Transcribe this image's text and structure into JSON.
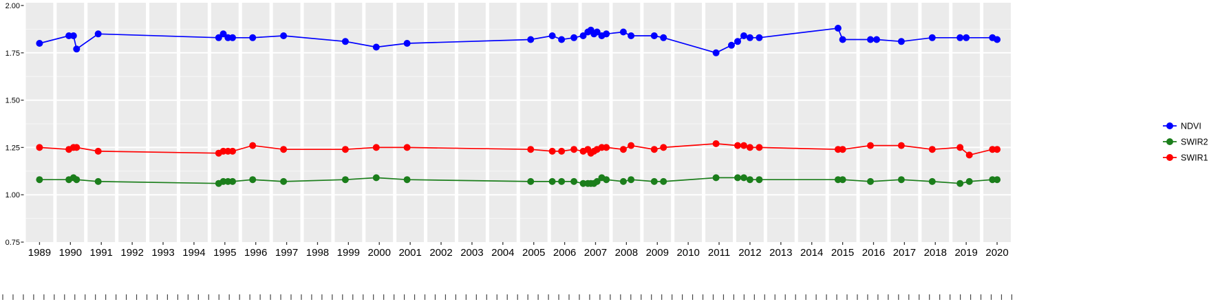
{
  "chart_data": {
    "type": "line",
    "title": "",
    "xlabel": "",
    "ylabel": "",
    "ylim": [
      0.75,
      2.0
    ],
    "grid": true,
    "legend_position": "right",
    "panel_background": "#EBEBEB",
    "grid_color": "#FFFFFF",
    "y_tick_labels": [
      "2.00",
      "1.75",
      "1.50",
      "1.25",
      "1.00",
      "0.75"
    ],
    "y_tick_values": [
      2.0,
      1.75,
      1.5,
      1.25,
      1.0,
      0.75
    ],
    "x_categories": [
      "1989",
      "1990",
      "1991",
      "1992",
      "1993",
      "1994",
      "1995",
      "1996",
      "1997",
      "1998",
      "1999",
      "2000",
      "2001",
      "2002",
      "2003",
      "2004",
      "2005",
      "2006",
      "2007",
      "2008",
      "2009",
      "2010",
      "2011",
      "2012",
      "2013",
      "2014",
      "2015",
      "2016",
      "2017",
      "2018",
      "2019",
      "2020"
    ],
    "marker": "circle",
    "series": [
      {
        "name": "NDVI",
        "color": "#0000FF",
        "points": [
          [
            1989.0,
            1.8
          ],
          [
            1989.95,
            1.84
          ],
          [
            1990.1,
            1.84
          ],
          [
            1990.2,
            1.77
          ],
          [
            1990.9,
            1.85
          ],
          [
            1994.8,
            1.83
          ],
          [
            1994.95,
            1.85
          ],
          [
            1995.1,
            1.83
          ],
          [
            1995.25,
            1.83
          ],
          [
            1995.9,
            1.83
          ],
          [
            1996.9,
            1.84
          ],
          [
            1998.9,
            1.81
          ],
          [
            1999.9,
            1.78
          ],
          [
            2000.9,
            1.8
          ],
          [
            2004.9,
            1.82
          ],
          [
            2005.6,
            1.84
          ],
          [
            2005.9,
            1.82
          ],
          [
            2006.3,
            1.83
          ],
          [
            2006.6,
            1.84
          ],
          [
            2006.75,
            1.86
          ],
          [
            2006.85,
            1.87
          ],
          [
            2006.95,
            1.85
          ],
          [
            2007.05,
            1.86
          ],
          [
            2007.2,
            1.84
          ],
          [
            2007.35,
            1.85
          ],
          [
            2007.9,
            1.86
          ],
          [
            2008.15,
            1.84
          ],
          [
            2008.9,
            1.84
          ],
          [
            2009.2,
            1.83
          ],
          [
            2010.9,
            1.75
          ],
          [
            2011.4,
            1.79
          ],
          [
            2011.6,
            1.81
          ],
          [
            2011.8,
            1.84
          ],
          [
            2012.0,
            1.83
          ],
          [
            2012.3,
            1.83
          ],
          [
            2014.85,
            1.88
          ],
          [
            2015.0,
            1.82
          ],
          [
            2015.9,
            1.82
          ],
          [
            2016.1,
            1.82
          ],
          [
            2016.9,
            1.81
          ],
          [
            2017.9,
            1.83
          ],
          [
            2018.8,
            1.83
          ],
          [
            2019.0,
            1.83
          ],
          [
            2019.85,
            1.83
          ],
          [
            2020.0,
            1.82
          ]
        ]
      },
      {
        "name": "SWIR2",
        "color": "#1B7E1B",
        "points": [
          [
            1989.0,
            1.08
          ],
          [
            1989.95,
            1.08
          ],
          [
            1990.1,
            1.09
          ],
          [
            1990.2,
            1.08
          ],
          [
            1990.9,
            1.07
          ],
          [
            1994.8,
            1.06
          ],
          [
            1994.95,
            1.07
          ],
          [
            1995.1,
            1.07
          ],
          [
            1995.25,
            1.07
          ],
          [
            1995.9,
            1.08
          ],
          [
            1996.9,
            1.07
          ],
          [
            1998.9,
            1.08
          ],
          [
            1999.9,
            1.09
          ],
          [
            2000.9,
            1.08
          ],
          [
            2004.9,
            1.07
          ],
          [
            2005.6,
            1.07
          ],
          [
            2005.9,
            1.07
          ],
          [
            2006.3,
            1.07
          ],
          [
            2006.6,
            1.06
          ],
          [
            2006.75,
            1.06
          ],
          [
            2006.85,
            1.06
          ],
          [
            2006.95,
            1.06
          ],
          [
            2007.05,
            1.07
          ],
          [
            2007.2,
            1.09
          ],
          [
            2007.35,
            1.08
          ],
          [
            2007.9,
            1.07
          ],
          [
            2008.15,
            1.08
          ],
          [
            2008.9,
            1.07
          ],
          [
            2009.2,
            1.07
          ],
          [
            2010.9,
            1.09
          ],
          [
            2011.6,
            1.09
          ],
          [
            2011.8,
            1.09
          ],
          [
            2012.0,
            1.08
          ],
          [
            2012.3,
            1.08
          ],
          [
            2014.85,
            1.08
          ],
          [
            2015.0,
            1.08
          ],
          [
            2015.9,
            1.07
          ],
          [
            2016.9,
            1.08
          ],
          [
            2017.9,
            1.07
          ],
          [
            2018.8,
            1.06
          ],
          [
            2019.1,
            1.07
          ],
          [
            2019.85,
            1.08
          ],
          [
            2020.0,
            1.08
          ]
        ]
      },
      {
        "name": "SWIR1",
        "color": "#FF0000",
        "points": [
          [
            1989.0,
            1.25
          ],
          [
            1989.95,
            1.24
          ],
          [
            1990.1,
            1.25
          ],
          [
            1990.2,
            1.25
          ],
          [
            1990.9,
            1.23
          ],
          [
            1994.8,
            1.22
          ],
          [
            1994.95,
            1.23
          ],
          [
            1995.1,
            1.23
          ],
          [
            1995.25,
            1.23
          ],
          [
            1995.9,
            1.26
          ],
          [
            1996.9,
            1.24
          ],
          [
            1998.9,
            1.24
          ],
          [
            1999.9,
            1.25
          ],
          [
            2000.9,
            1.25
          ],
          [
            2004.9,
            1.24
          ],
          [
            2005.6,
            1.23
          ],
          [
            2005.9,
            1.23
          ],
          [
            2006.3,
            1.24
          ],
          [
            2006.6,
            1.23
          ],
          [
            2006.75,
            1.24
          ],
          [
            2006.85,
            1.22
          ],
          [
            2006.95,
            1.23
          ],
          [
            2007.05,
            1.24
          ],
          [
            2007.2,
            1.25
          ],
          [
            2007.35,
            1.25
          ],
          [
            2007.9,
            1.24
          ],
          [
            2008.15,
            1.26
          ],
          [
            2008.9,
            1.24
          ],
          [
            2009.2,
            1.25
          ],
          [
            2010.9,
            1.27
          ],
          [
            2011.6,
            1.26
          ],
          [
            2011.8,
            1.26
          ],
          [
            2012.0,
            1.25
          ],
          [
            2012.3,
            1.25
          ],
          [
            2014.85,
            1.24
          ],
          [
            2015.0,
            1.24
          ],
          [
            2015.9,
            1.26
          ],
          [
            2016.9,
            1.26
          ],
          [
            2017.9,
            1.24
          ],
          [
            2018.8,
            1.25
          ],
          [
            2019.1,
            1.21
          ],
          [
            2019.85,
            1.24
          ],
          [
            2020.0,
            1.24
          ]
        ]
      }
    ],
    "legend": [
      {
        "label": "NDVI",
        "color": "#0000FF"
      },
      {
        "label": "SWIR2",
        "color": "#1B7E1B"
      },
      {
        "label": "SWIR1",
        "color": "#FF0000"
      }
    ]
  }
}
